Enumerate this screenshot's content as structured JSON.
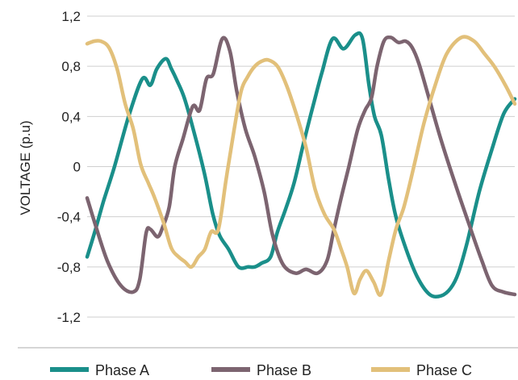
{
  "chart_data": {
    "type": "line",
    "title": "",
    "xlabel": "",
    "ylabel": "VOLTAGE (p.u)",
    "ylim": [
      -1.2,
      1.2
    ],
    "xlim": [
      0,
      100
    ],
    "yticks": [
      1.2,
      0.8,
      0.4,
      0,
      -0.4,
      -0.8,
      -1.2
    ],
    "ytick_labels": [
      "1,2",
      "0,8",
      "0,4",
      "0",
      "-0,4",
      "-0,8",
      "-1,2"
    ],
    "grid": "horizontal",
    "legend": "bottom",
    "series": [
      {
        "name": "Phase A",
        "color": "#1a8f8a",
        "x": [
          0,
          1.8,
          3.8,
          6.4,
          9.7,
          12.9,
          14.8,
          16.3,
          18.4,
          19.7,
          21.1,
          22.7,
          24.8,
          27.4,
          29.4,
          31.0,
          33.1,
          35.4,
          37.7,
          39.2,
          40.8,
          42.9,
          44.5,
          46.3,
          48.4,
          50.7,
          52.8,
          54.9,
          57.4,
          60.0,
          62.7,
          64.4,
          65.9,
          67.2,
          68.8,
          70.5,
          72.2,
          74.6,
          77.2,
          80.1,
          82.8,
          85.0,
          86.8,
          88.9,
          91.7,
          94.5,
          97.4,
          100
        ],
        "y": [
          -0.72,
          -0.52,
          -0.28,
          0.0,
          0.4,
          0.7,
          0.65,
          0.78,
          0.86,
          0.78,
          0.68,
          0.55,
          0.3,
          -0.05,
          -0.38,
          -0.55,
          -0.66,
          -0.8,
          -0.8,
          -0.8,
          -0.77,
          -0.72,
          -0.52,
          -0.35,
          -0.13,
          0.2,
          0.48,
          0.75,
          1.02,
          0.94,
          1.05,
          1.02,
          0.65,
          0.4,
          0.25,
          -0.1,
          -0.4,
          -0.66,
          -0.88,
          -1.02,
          -1.03,
          -0.97,
          -0.85,
          -0.6,
          -0.2,
          0.12,
          0.42,
          0.54
        ]
      },
      {
        "name": "Phase B",
        "color": "#7c6470",
        "x": [
          0,
          1.8,
          4.7,
          7.9,
          10.8,
          12.3,
          13.8,
          14.8,
          16.5,
          17.7,
          19.2,
          20.5,
          22.4,
          24.7,
          26.3,
          27.9,
          29.5,
          31.6,
          33.4,
          35.0,
          37.0,
          39.2,
          41.4,
          43.4,
          45.8,
          48.7,
          51.2,
          53.9,
          56.1,
          57.6,
          59.4,
          61.2,
          63.3,
          65.0,
          66.5,
          67.8,
          69.4,
          71.0,
          72.8,
          74.5,
          76.0,
          77.6,
          79.9,
          82.7,
          85.9,
          89.2,
          92.3,
          94.7,
          97.3,
          100
        ],
        "y": [
          -0.25,
          -0.45,
          -0.75,
          -0.95,
          -1.0,
          -0.9,
          -0.53,
          -0.5,
          -0.56,
          -0.48,
          -0.32,
          0.0,
          0.22,
          0.48,
          0.45,
          0.7,
          0.74,
          1.02,
          0.92,
          0.6,
          0.3,
          0.08,
          -0.2,
          -0.55,
          -0.78,
          -0.85,
          -0.82,
          -0.85,
          -0.75,
          -0.52,
          -0.25,
          0.0,
          0.3,
          0.45,
          0.55,
          0.8,
          1.0,
          1.03,
          0.99,
          1.0,
          0.95,
          0.82,
          0.55,
          0.22,
          -0.12,
          -0.45,
          -0.75,
          -0.95,
          -1.0,
          -1.02
        ]
      },
      {
        "name": "Phase C",
        "color": "#e2c07a",
        "x": [
          0,
          1.6,
          3.2,
          5.1,
          7.0,
          8.9,
          10.8,
          12.5,
          14.3,
          15.8,
          17.9,
          19.7,
          21.4,
          22.9,
          24.4,
          26.0,
          27.5,
          29.0,
          30.7,
          32.5,
          34.3,
          36.0,
          37.6,
          39.2,
          40.8,
          42.4,
          44.5,
          46.6,
          48.9,
          51.2,
          53.3,
          55.5,
          57.7,
          59.3,
          60.8,
          62.4,
          63.8,
          65.3,
          67.0,
          68.7,
          70.5,
          72.2,
          74.1,
          76.4,
          78.8,
          81.4,
          84.1,
          87.5,
          90.5,
          92.9,
          95.2,
          97.8,
          100
        ],
        "y": [
          0.98,
          1.0,
          1.0,
          0.95,
          0.78,
          0.5,
          0.3,
          0.02,
          -0.13,
          -0.25,
          -0.45,
          -0.65,
          -0.72,
          -0.76,
          -0.8,
          -0.72,
          -0.66,
          -0.52,
          -0.5,
          -0.1,
          0.28,
          0.6,
          0.72,
          0.8,
          0.84,
          0.85,
          0.8,
          0.65,
          0.42,
          0.15,
          -0.18,
          -0.38,
          -0.5,
          -0.65,
          -0.8,
          -1.01,
          -0.9,
          -0.83,
          -0.92,
          -1.02,
          -0.75,
          -0.5,
          -0.32,
          0.0,
          0.35,
          0.65,
          0.9,
          1.03,
          1.0,
          0.9,
          0.8,
          0.65,
          0.5
        ]
      }
    ]
  }
}
